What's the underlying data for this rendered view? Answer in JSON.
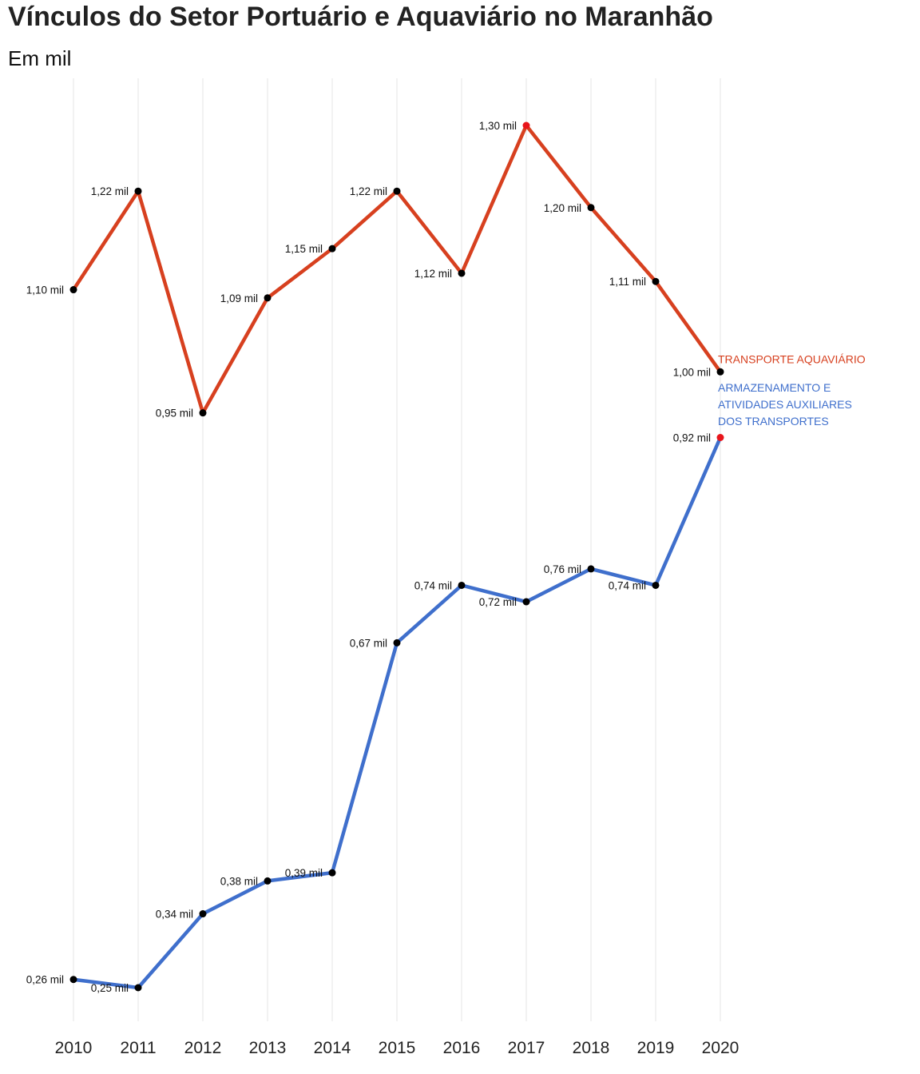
{
  "chart_data": {
    "type": "line",
    "title": "Vínculos do Setor Portuário e Aquaviário no Maranhão",
    "subtitle": "Em mil",
    "xlabel": "",
    "ylabel": "",
    "x": [
      "2010",
      "2011",
      "2012",
      "2013",
      "2014",
      "2015",
      "2016",
      "2017",
      "2018",
      "2019",
      "2020"
    ],
    "ylim": [
      0.2,
      1.4
    ],
    "grid": "vertical",
    "legend": "end-of-line labels",
    "series": [
      {
        "name": "TRANSPORTE AQUAVIÁRIO",
        "color": "#d7401f",
        "values": [
          1.1,
          1.22,
          0.95,
          1.09,
          1.15,
          1.22,
          1.12,
          1.3,
          1.2,
          1.11,
          1.0
        ],
        "labels": [
          "1,10 mil",
          "1,22 mil",
          "0,95 mil",
          "1,09 mil",
          "1,15 mil",
          "1,22 mil",
          "1,12 mil",
          "1,30 mil",
          "1,20 mil",
          "1,11 mil",
          "1,00 mil"
        ]
      },
      {
        "name": "ARMAZENAMENTO E ATIVIDADES AUXILIARES DOS TRANSPORTES",
        "name_lines": [
          "ARMAZENAMENTO E",
          "ATIVIDADES AUXILIARES",
          "DOS TRANSPORTES"
        ],
        "color": "#3f6fcc",
        "values": [
          0.26,
          0.25,
          0.34,
          0.38,
          0.39,
          0.67,
          0.74,
          0.72,
          0.76,
          0.74,
          0.92
        ],
        "labels": [
          "0,26 mil",
          "0,25 mil",
          "0,34 mil",
          "0,38 mil",
          "0,39 mil",
          "0,67 mil",
          "0,74 mil",
          "0,72 mil",
          "0,76 mil",
          "0,74 mil",
          "0,92 mil"
        ]
      }
    ],
    "point_color": "#000000",
    "max_point_color": "#e8151b",
    "grid_color": "#e6e6e6"
  }
}
